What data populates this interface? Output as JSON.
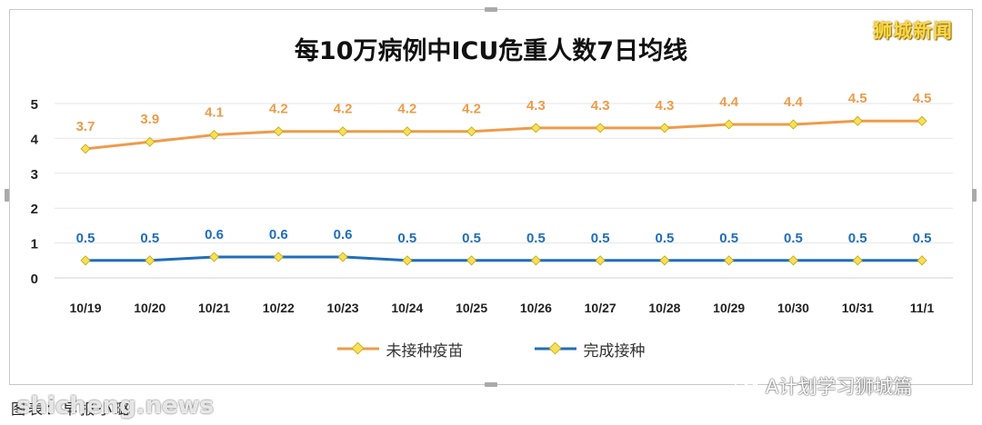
{
  "brand": "狮城新闻",
  "watermark": "shicheng.news",
  "wechat_label": "A计划学习狮城篇",
  "source_caption": "图表：早报小璐",
  "colors": {
    "unvaccinated": "#ee9b4a",
    "vaccinated": "#1f6eb8",
    "marker_fill": "#f4e05a",
    "grid": "#e6e6e6"
  },
  "chart_data": {
    "type": "line",
    "title": "每10万病例中ICU危重人数7日均线",
    "xlabel": "",
    "ylabel": "",
    "ylim": [
      0,
      5
    ],
    "yticks": [
      0,
      1,
      2,
      3,
      4,
      5
    ],
    "grid": true,
    "legend_position": "bottom",
    "categories": [
      "10/19",
      "10/20",
      "10/21",
      "10/22",
      "10/23",
      "10/24",
      "10/25",
      "10/26",
      "10/27",
      "10/28",
      "10/29",
      "10/30",
      "10/31",
      "11/1"
    ],
    "series": [
      {
        "name": "未接种疫苗",
        "color": "#ee9b4a",
        "values": [
          3.7,
          3.9,
          4.1,
          4.2,
          4.2,
          4.2,
          4.2,
          4.3,
          4.3,
          4.3,
          4.4,
          4.4,
          4.5,
          4.5
        ],
        "labels": [
          "3.7",
          "3.9",
          "4.1",
          "4.2",
          "4.2",
          "4.2",
          "4.2",
          "4.3",
          "4.3",
          "4.3",
          "4.4",
          "4.4",
          "4.5",
          "4.5"
        ]
      },
      {
        "name": "完成接种",
        "color": "#1f6eb8",
        "values": [
          0.5,
          0.5,
          0.6,
          0.6,
          0.6,
          0.5,
          0.5,
          0.5,
          0.5,
          0.5,
          0.5,
          0.5,
          0.5,
          0.5
        ],
        "labels": [
          "0.5",
          "0.5",
          "0.6",
          "0.6",
          "0.6",
          "0.5",
          "0.5",
          "0.5",
          "0.5",
          "0.5",
          "0.5",
          "0.5",
          "0.5",
          "0.5"
        ]
      }
    ]
  }
}
